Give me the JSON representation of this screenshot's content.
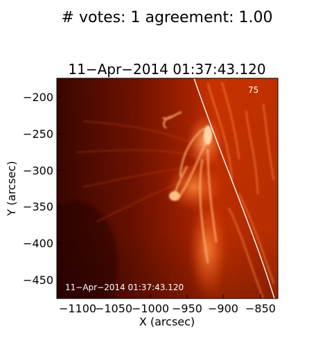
{
  "header": {
    "title": "# votes: 1 agreement: 1.00"
  },
  "image": {
    "title": "11−Apr−2014 01:37:43.120",
    "channel_label": "75",
    "timestamp_overlay": "11−Apr−2014 01:37:43.120",
    "colormap": {
      "dark": "#300500",
      "mid": "#b82600",
      "bright": "#ff9a55",
      "limb_line": "#ffffff"
    }
  },
  "axes": {
    "xlabel": "X (arcsec)",
    "ylabel": "Y (arcsec)",
    "xticks": [
      "−1100",
      "−1050",
      "−1000",
      "−950",
      "−900",
      "−850"
    ],
    "yticks": [
      "−200",
      "−250",
      "−300",
      "−350",
      "−400",
      "−450"
    ]
  }
}
